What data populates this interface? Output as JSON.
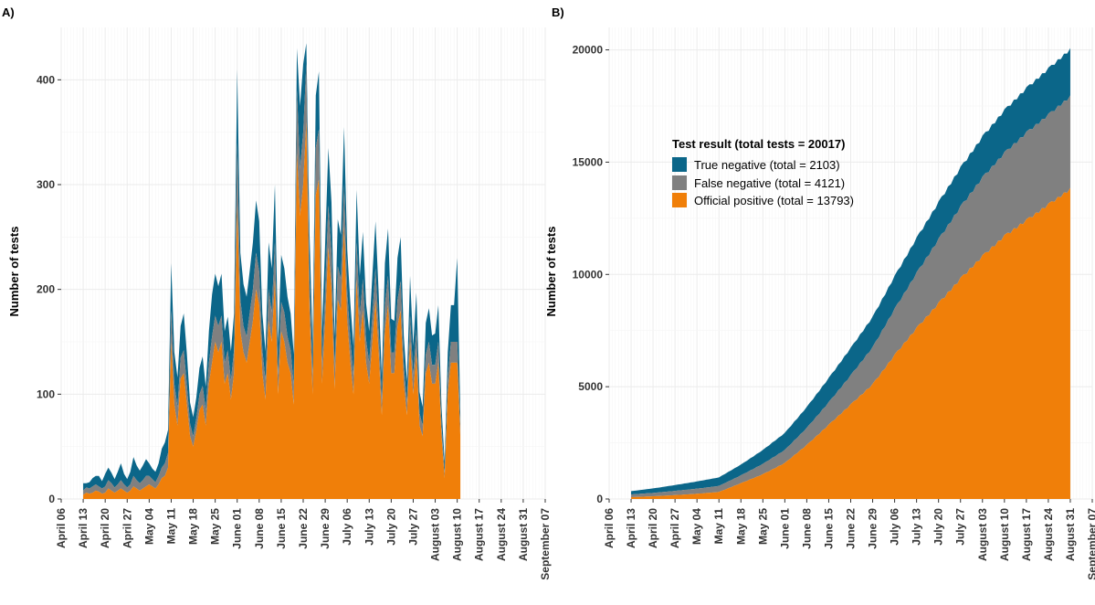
{
  "colors": {
    "true_negative": "#0b6689",
    "false_negative": "#808080",
    "official_positive": "#f07f09",
    "grid_major": "#ebebeb",
    "grid_minor": "#f5f5f5"
  },
  "chart_data": [
    {
      "type": "area",
      "stacked": true,
      "label": "A)",
      "xlabel": "",
      "ylabel": "Number of tests",
      "ylim": [
        0,
        450
      ],
      "yticks": [
        0,
        100,
        200,
        300,
        400
      ],
      "x_ticks": [
        {
          "date": "2020-04-06",
          "label": "April 06"
        },
        {
          "date": "2020-04-13",
          "label": "April 13"
        },
        {
          "date": "2020-04-20",
          "label": "April 20"
        },
        {
          "date": "2020-04-27",
          "label": "April 27"
        },
        {
          "date": "2020-05-04",
          "label": "May 04"
        },
        {
          "date": "2020-05-11",
          "label": "May 11"
        },
        {
          "date": "2020-05-18",
          "label": "May 18"
        },
        {
          "date": "2020-05-25",
          "label": "May 25"
        },
        {
          "date": "2020-06-01",
          "label": "June 01"
        },
        {
          "date": "2020-06-08",
          "label": "June 08"
        },
        {
          "date": "2020-06-15",
          "label": "June 15"
        },
        {
          "date": "2020-06-22",
          "label": "June 22"
        },
        {
          "date": "2020-06-29",
          "label": "June 29"
        },
        {
          "date": "2020-07-06",
          "label": "July 06"
        },
        {
          "date": "2020-07-13",
          "label": "July 13"
        },
        {
          "date": "2020-07-20",
          "label": "July 20"
        },
        {
          "date": "2020-07-27",
          "label": "July 27"
        },
        {
          "date": "2020-08-03",
          "label": "August 03"
        },
        {
          "date": "2020-08-10",
          "label": "August 10"
        },
        {
          "date": "2020-08-17",
          "label": "August 17"
        },
        {
          "date": "2020-08-24",
          "label": "August 24"
        },
        {
          "date": "2020-08-31",
          "label": "August 31"
        },
        {
          "date": "2020-09-07",
          "label": "September 07"
        }
      ],
      "xlim": [
        "2020-04-06",
        "2020-09-07"
      ],
      "x_start": "2020-04-13",
      "series": [
        {
          "name": "Official positive",
          "key": "official_positive",
          "values": [
            4,
            6,
            5,
            6,
            8,
            7,
            5,
            6,
            10,
            8,
            6,
            8,
            10,
            8,
            6,
            8,
            12,
            10,
            8,
            10,
            12,
            14,
            12,
            10,
            14,
            20,
            22,
            30,
            150,
            90,
            70,
            115,
            120,
            90,
            60,
            50,
            65,
            85,
            90,
            70,
            110,
            130,
            150,
            140,
            150,
            110,
            120,
            95,
            120,
            280,
            160,
            140,
            130,
            150,
            170,
            200,
            185,
            120,
            95,
            170,
            150,
            210,
            100,
            160,
            150,
            130,
            120,
            90,
            330,
            270,
            300,
            360,
            180,
            100,
            290,
            305,
            110,
            170,
            240,
            200,
            105,
            190,
            180,
            260,
            170,
            130,
            100,
            210,
            150,
            180,
            130,
            110,
            150,
            190,
            140,
            80,
            160,
            185,
            120,
            120,
            165,
            180,
            110,
            80,
            150,
            100,
            140,
            70,
            60,
            120,
            130,
            110,
            110,
            130,
            60,
            20,
            100,
            130,
            130,
            130,
            60
          ]
        },
        {
          "name": "False negative",
          "key": "false_negative",
          "values": [
            4,
            5,
            5,
            6,
            6,
            5,
            5,
            6,
            8,
            7,
            5,
            6,
            8,
            6,
            5,
            6,
            10,
            8,
            7,
            8,
            10,
            8,
            7,
            6,
            8,
            10,
            12,
            14,
            30,
            20,
            18,
            20,
            22,
            18,
            12,
            10,
            12,
            15,
            18,
            15,
            20,
            25,
            25,
            25,
            25,
            20,
            22,
            18,
            22,
            60,
            30,
            25,
            25,
            28,
            30,
            35,
            32,
            22,
            18,
            30,
            28,
            35,
            18,
            28,
            28,
            25,
            22,
            18,
            60,
            45,
            50,
            55,
            30,
            18,
            45,
            48,
            20,
            30,
            40,
            35,
            20,
            32,
            30,
            40,
            28,
            22,
            18,
            35,
            25,
            30,
            22,
            20,
            25,
            30,
            22,
            15,
            25,
            28,
            20,
            20,
            25,
            28,
            18,
            12,
            25,
            18,
            22,
            12,
            10,
            18,
            20,
            18,
            18,
            20,
            10,
            5,
            15,
            20,
            20,
            20,
            10
          ]
        },
        {
          "name": "True negative",
          "key": "true_negative",
          "values": [
            7,
            4,
            6,
            8,
            8,
            10,
            7,
            12,
            12,
            10,
            8,
            12,
            16,
            10,
            8,
            12,
            18,
            14,
            12,
            14,
            16,
            12,
            10,
            10,
            12,
            18,
            20,
            22,
            45,
            30,
            28,
            30,
            35,
            30,
            20,
            18,
            20,
            25,
            28,
            22,
            30,
            40,
            40,
            38,
            40,
            30,
            32,
            28,
            35,
            70,
            45,
            40,
            38,
            40,
            45,
            50,
            48,
            35,
            28,
            45,
            42,
            55,
            30,
            45,
            42,
            38,
            35,
            30,
            40,
            60,
            65,
            20,
            45,
            30,
            50,
            55,
            30,
            45,
            55,
            48,
            30,
            45,
            42,
            55,
            40,
            35,
            28,
            50,
            38,
            45,
            35,
            30,
            38,
            45,
            35,
            22,
            40,
            45,
            32,
            30,
            40,
            42,
            28,
            20,
            38,
            28,
            35,
            20,
            18,
            30,
            32,
            28,
            30,
            35,
            18,
            10,
            25,
            35,
            35,
            80,
            10
          ]
        }
      ]
    },
    {
      "type": "area",
      "stacked": true,
      "cumulative": true,
      "label": "B)",
      "xlabel": "",
      "ylabel": "Number of tests",
      "ylim": [
        0,
        21000
      ],
      "yticks": [
        0,
        5000,
        10000,
        15000,
        20000
      ],
      "x_ticks": [
        {
          "date": "2020-04-06",
          "label": "April 06"
        },
        {
          "date": "2020-04-13",
          "label": "April 13"
        },
        {
          "date": "2020-04-20",
          "label": "April 20"
        },
        {
          "date": "2020-04-27",
          "label": "April 27"
        },
        {
          "date": "2020-05-04",
          "label": "May 04"
        },
        {
          "date": "2020-05-11",
          "label": "May 11"
        },
        {
          "date": "2020-05-18",
          "label": "May 18"
        },
        {
          "date": "2020-05-25",
          "label": "May 25"
        },
        {
          "date": "2020-06-01",
          "label": "June 01"
        },
        {
          "date": "2020-06-08",
          "label": "June 08"
        },
        {
          "date": "2020-06-15",
          "label": "June 15"
        },
        {
          "date": "2020-06-22",
          "label": "June 22"
        },
        {
          "date": "2020-06-29",
          "label": "June 29"
        },
        {
          "date": "2020-07-06",
          "label": "July 06"
        },
        {
          "date": "2020-07-13",
          "label": "July 13"
        },
        {
          "date": "2020-07-20",
          "label": "July 20"
        },
        {
          "date": "2020-07-27",
          "label": "July 27"
        },
        {
          "date": "2020-08-03",
          "label": "August 03"
        },
        {
          "date": "2020-08-10",
          "label": "August 10"
        },
        {
          "date": "2020-08-17",
          "label": "August 17"
        },
        {
          "date": "2020-08-24",
          "label": "August 24"
        },
        {
          "date": "2020-08-31",
          "label": "August 31"
        },
        {
          "date": "2020-09-07",
          "label": "September 07"
        }
      ],
      "xlim": [
        "2020-04-06",
        "2020-09-07"
      ],
      "points": [
        {
          "date": "2020-04-13",
          "official_positive": 80,
          "false_negative": 120,
          "true_negative": 150
        },
        {
          "date": "2020-04-20",
          "official_positive": 120,
          "false_negative": 150,
          "true_negative": 200
        },
        {
          "date": "2020-04-27",
          "official_positive": 170,
          "false_negative": 190,
          "true_negative": 260
        },
        {
          "date": "2020-05-04",
          "official_positive": 230,
          "false_negative": 230,
          "true_negative": 320
        },
        {
          "date": "2020-05-11",
          "official_positive": 310,
          "false_negative": 270,
          "true_negative": 380
        },
        {
          "date": "2020-05-18",
          "official_positive": 700,
          "false_negative": 350,
          "true_negative": 480
        },
        {
          "date": "2020-05-25",
          "official_positive": 1100,
          "false_negative": 460,
          "true_negative": 620
        },
        {
          "date": "2020-06-01",
          "official_positive": 1600,
          "false_negative": 580,
          "true_negative": 760
        },
        {
          "date": "2020-06-08",
          "official_positive": 2400,
          "false_negative": 760,
          "true_negative": 930
        },
        {
          "date": "2020-06-15",
          "official_positive": 3300,
          "false_negative": 1000,
          "true_negative": 1080
        },
        {
          "date": "2020-06-22",
          "official_positive": 4200,
          "false_negative": 1300,
          "true_negative": 1220
        },
        {
          "date": "2020-06-29",
          "official_positive": 5100,
          "false_negative": 1650,
          "true_negative": 1350
        },
        {
          "date": "2020-07-06",
          "official_positive": 6400,
          "false_negative": 2050,
          "true_negative": 1460
        },
        {
          "date": "2020-07-13",
          "official_positive": 7600,
          "false_negative": 2450,
          "true_negative": 1560
        },
        {
          "date": "2020-07-20",
          "official_positive": 8700,
          "false_negative": 2850,
          "true_negative": 1650
        },
        {
          "date": "2020-07-27",
          "official_positive": 9800,
          "false_negative": 3200,
          "true_negative": 1740
        },
        {
          "date": "2020-08-03",
          "official_positive": 10800,
          "false_negative": 3500,
          "true_negative": 1820
        },
        {
          "date": "2020-08-10",
          "official_positive": 11700,
          "false_negative": 3700,
          "true_negative": 1900
        },
        {
          "date": "2020-08-17",
          "official_positive": 12400,
          "false_negative": 3900,
          "true_negative": 1980
        },
        {
          "date": "2020-08-24",
          "official_positive": 13100,
          "false_negative": 4000,
          "true_negative": 2050
        },
        {
          "date": "2020-08-31",
          "official_positive": 13793,
          "false_negative": 4121,
          "true_negative": 2103
        }
      ],
      "legend": {
        "position": "inside-top-left",
        "title": "Test result (total tests = 20017)",
        "items": [
          {
            "key": "true_negative",
            "label": "True negative (total = 2103)"
          },
          {
            "key": "false_negative",
            "label": "False negative (total = 4121)"
          },
          {
            "key": "official_positive",
            "label": "Official positive (total = 13793)"
          }
        ]
      }
    }
  ]
}
